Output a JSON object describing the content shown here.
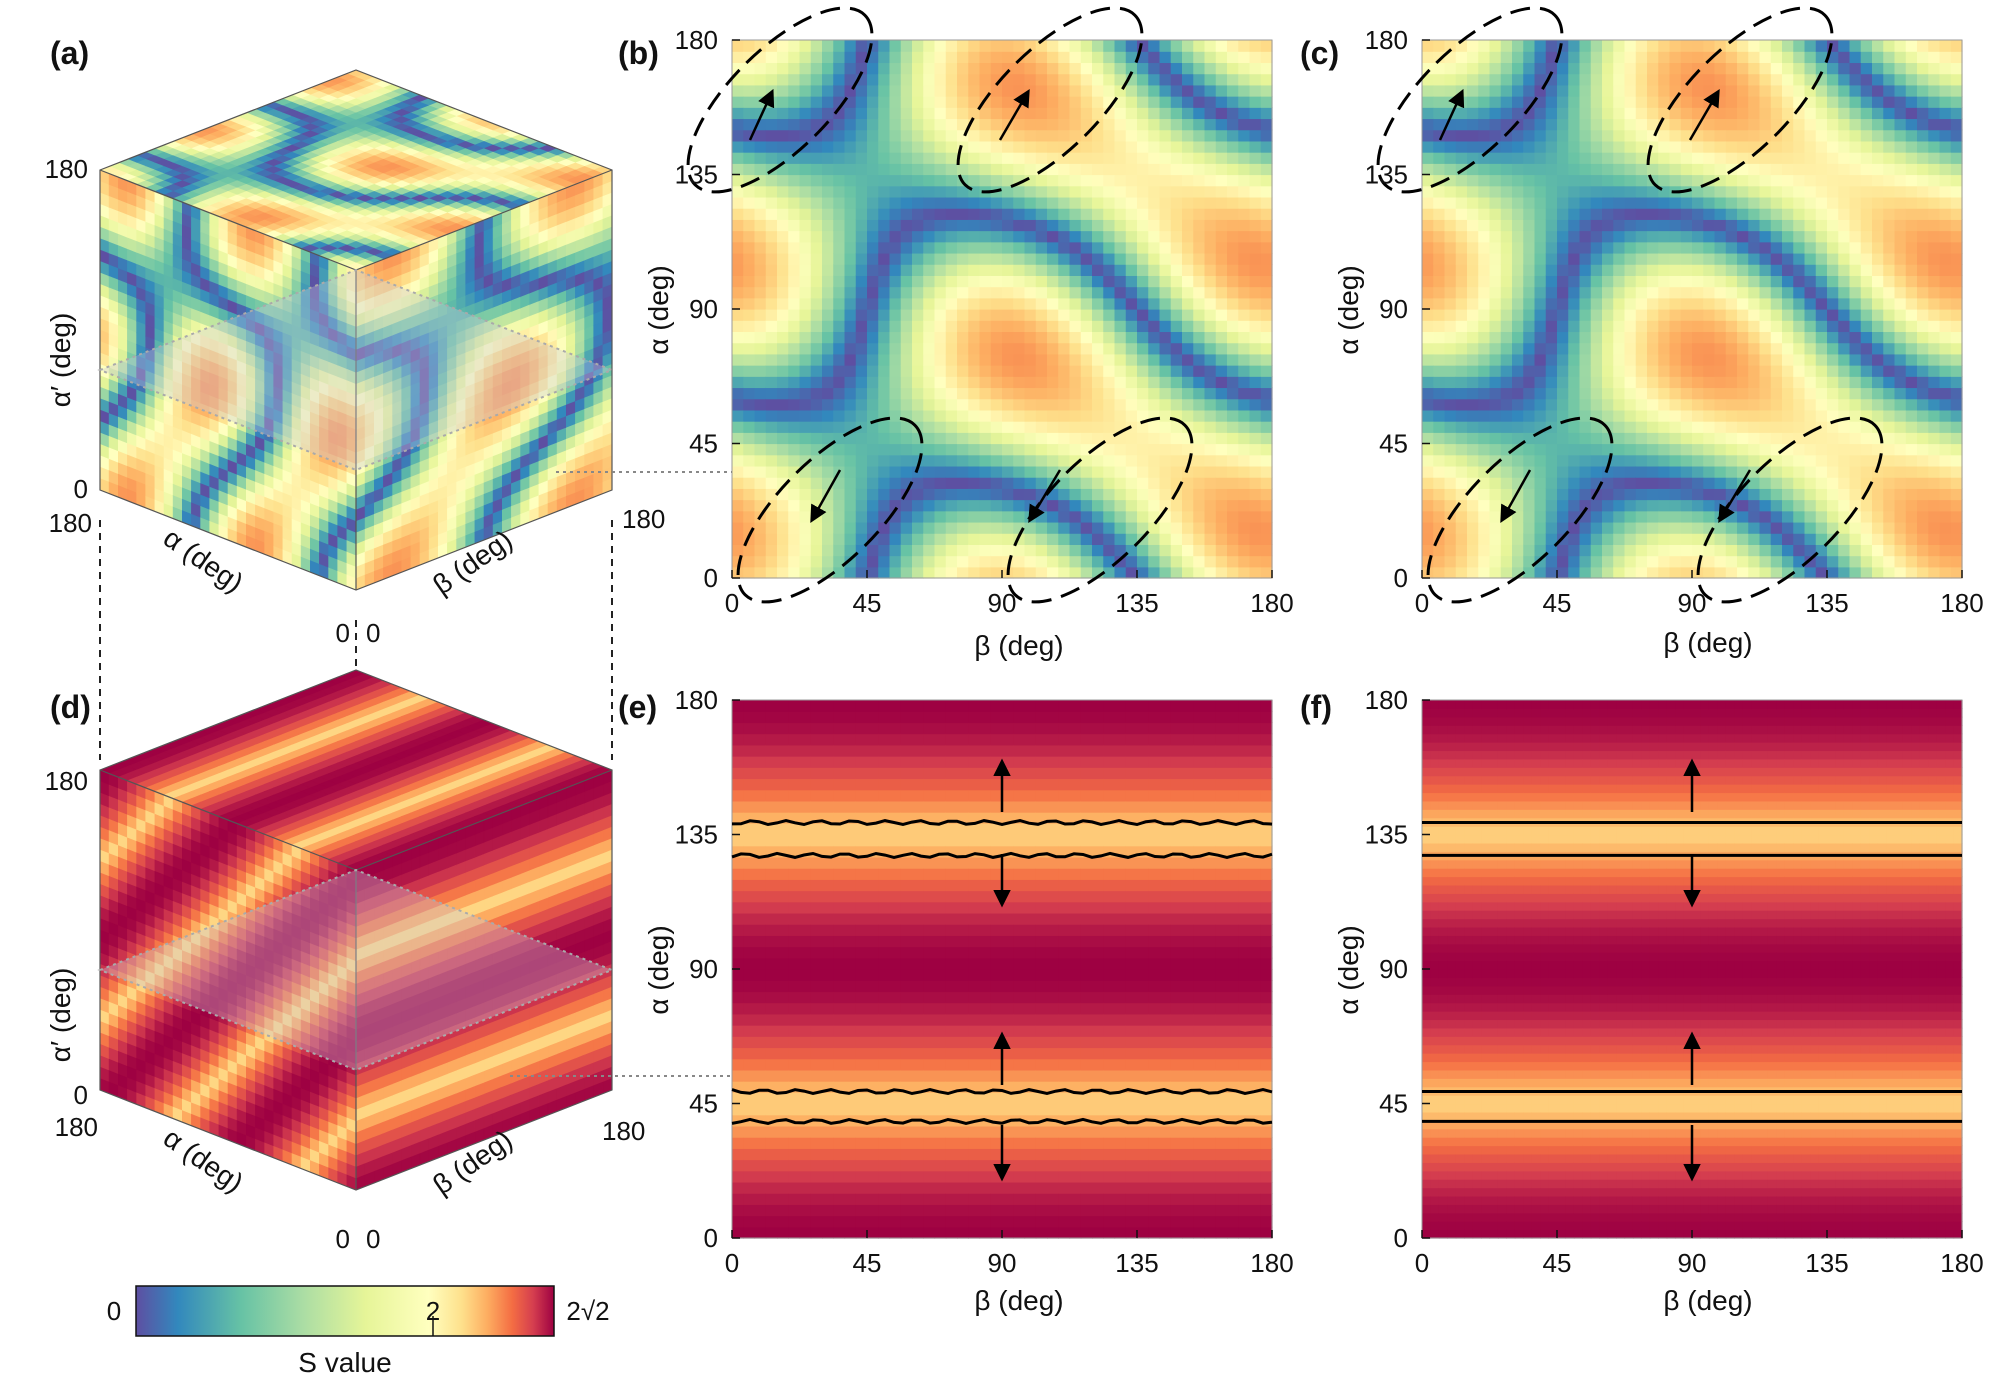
{
  "figure": {
    "panels": [
      {
        "id": "a",
        "label": "(a)",
        "type": "cube",
        "pattern": "spectral",
        "axis_labels": {
          "alpha_prime": "α′ (deg)",
          "alpha": "α (deg)",
          "beta": "β (deg)"
        },
        "ticks": {
          "alpha_prime": [
            "0",
            "180"
          ],
          "alpha": [
            "180",
            "0"
          ],
          "beta": [
            "0",
            "180"
          ]
        }
      },
      {
        "id": "b",
        "label": "(b)",
        "type": "heatmap",
        "pattern": "spectral",
        "contour": "dashed",
        "xlabel": "β (deg)",
        "ylabel": "α (deg)",
        "xticks": [
          "0",
          "45",
          "90",
          "135",
          "180"
        ],
        "yticks": [
          "0",
          "45",
          "90",
          "135",
          "180"
        ]
      },
      {
        "id": "c",
        "label": "(c)",
        "type": "heatmap",
        "pattern": "spectral",
        "contour": "dashed",
        "xlabel": "β (deg)",
        "ylabel": "α (deg)",
        "xticks": [
          "0",
          "45",
          "90",
          "135",
          "180"
        ],
        "yticks": [
          "0",
          "45",
          "90",
          "135",
          "180"
        ]
      },
      {
        "id": "d",
        "label": "(d)",
        "type": "cube",
        "pattern": "red-bands",
        "axis_labels": {
          "alpha_prime": "α′ (deg)",
          "alpha": "α (deg)",
          "beta": "β (deg)"
        },
        "ticks": {
          "alpha_prime": [
            "0",
            "180"
          ],
          "alpha": [
            "180",
            "0"
          ],
          "beta": [
            "0",
            "180"
          ]
        }
      },
      {
        "id": "e",
        "label": "(e)",
        "type": "heatmap",
        "pattern": "red-bands",
        "contour": "solid",
        "xlabel": "β (deg)",
        "ylabel": "α (deg)",
        "xticks": [
          "0",
          "45",
          "90",
          "135",
          "180"
        ],
        "yticks": [
          "0",
          "45",
          "90",
          "135",
          "180"
        ]
      },
      {
        "id": "f",
        "label": "(f)",
        "type": "heatmap",
        "pattern": "red-bands",
        "contour": "solid",
        "xlabel": "β (deg)",
        "ylabel": "α (deg)",
        "xticks": [
          "0",
          "45",
          "90",
          "135",
          "180"
        ],
        "yticks": [
          "0",
          "45",
          "90",
          "135",
          "180"
        ]
      }
    ],
    "colorbar": {
      "label": "S value",
      "ticks": [
        "0",
        "2",
        "2√2"
      ],
      "range": [
        0,
        2.8284
      ],
      "colors": [
        "#5e4fa2",
        "#3288bd",
        "#66c2a5",
        "#abdda4",
        "#e6f598",
        "#ffffbf",
        "#fee08b",
        "#fdae61",
        "#f46d43",
        "#d53e4f",
        "#9e0142"
      ]
    }
  },
  "chart_data": [
    {
      "panel": "b",
      "type": "heatmap",
      "x_name": "β (deg)",
      "y_name": "α (deg)",
      "xlim": [
        0,
        180
      ],
      "ylim": [
        0,
        180
      ],
      "z_range": [
        0,
        2.8284
      ],
      "contour_level": 2,
      "contour_style": "dashed",
      "description_of_maxima": "S≈2√2 regions near (β,α)=(15,170),(105,170),(30,20),(120,20)"
    },
    {
      "panel": "c",
      "type": "heatmap",
      "x_name": "β (deg)",
      "y_name": "α (deg)",
      "xlim": [
        0,
        180
      ],
      "ylim": [
        0,
        180
      ],
      "z_range": [
        0,
        2.8284
      ],
      "contour_level": 2,
      "contour_style": "dashed"
    },
    {
      "panel": "e",
      "type": "heatmap",
      "x_name": "β (deg)",
      "y_name": "α (deg)",
      "xlim": [
        0,
        180
      ],
      "ylim": [
        0,
        180
      ],
      "z_range": [
        0,
        2.8284
      ],
      "contour_level": 2,
      "contour_alpha_values": [
        39,
        49,
        128,
        139
      ],
      "contour_style": "solid"
    },
    {
      "panel": "f",
      "type": "heatmap",
      "x_name": "β (deg)",
      "y_name": "α (deg)",
      "xlim": [
        0,
        180
      ],
      "ylim": [
        0,
        180
      ],
      "z_range": [
        0,
        2.8284
      ],
      "contour_level": 2,
      "contour_alpha_values": [
        39,
        49,
        128,
        139
      ],
      "contour_style": "solid"
    }
  ]
}
